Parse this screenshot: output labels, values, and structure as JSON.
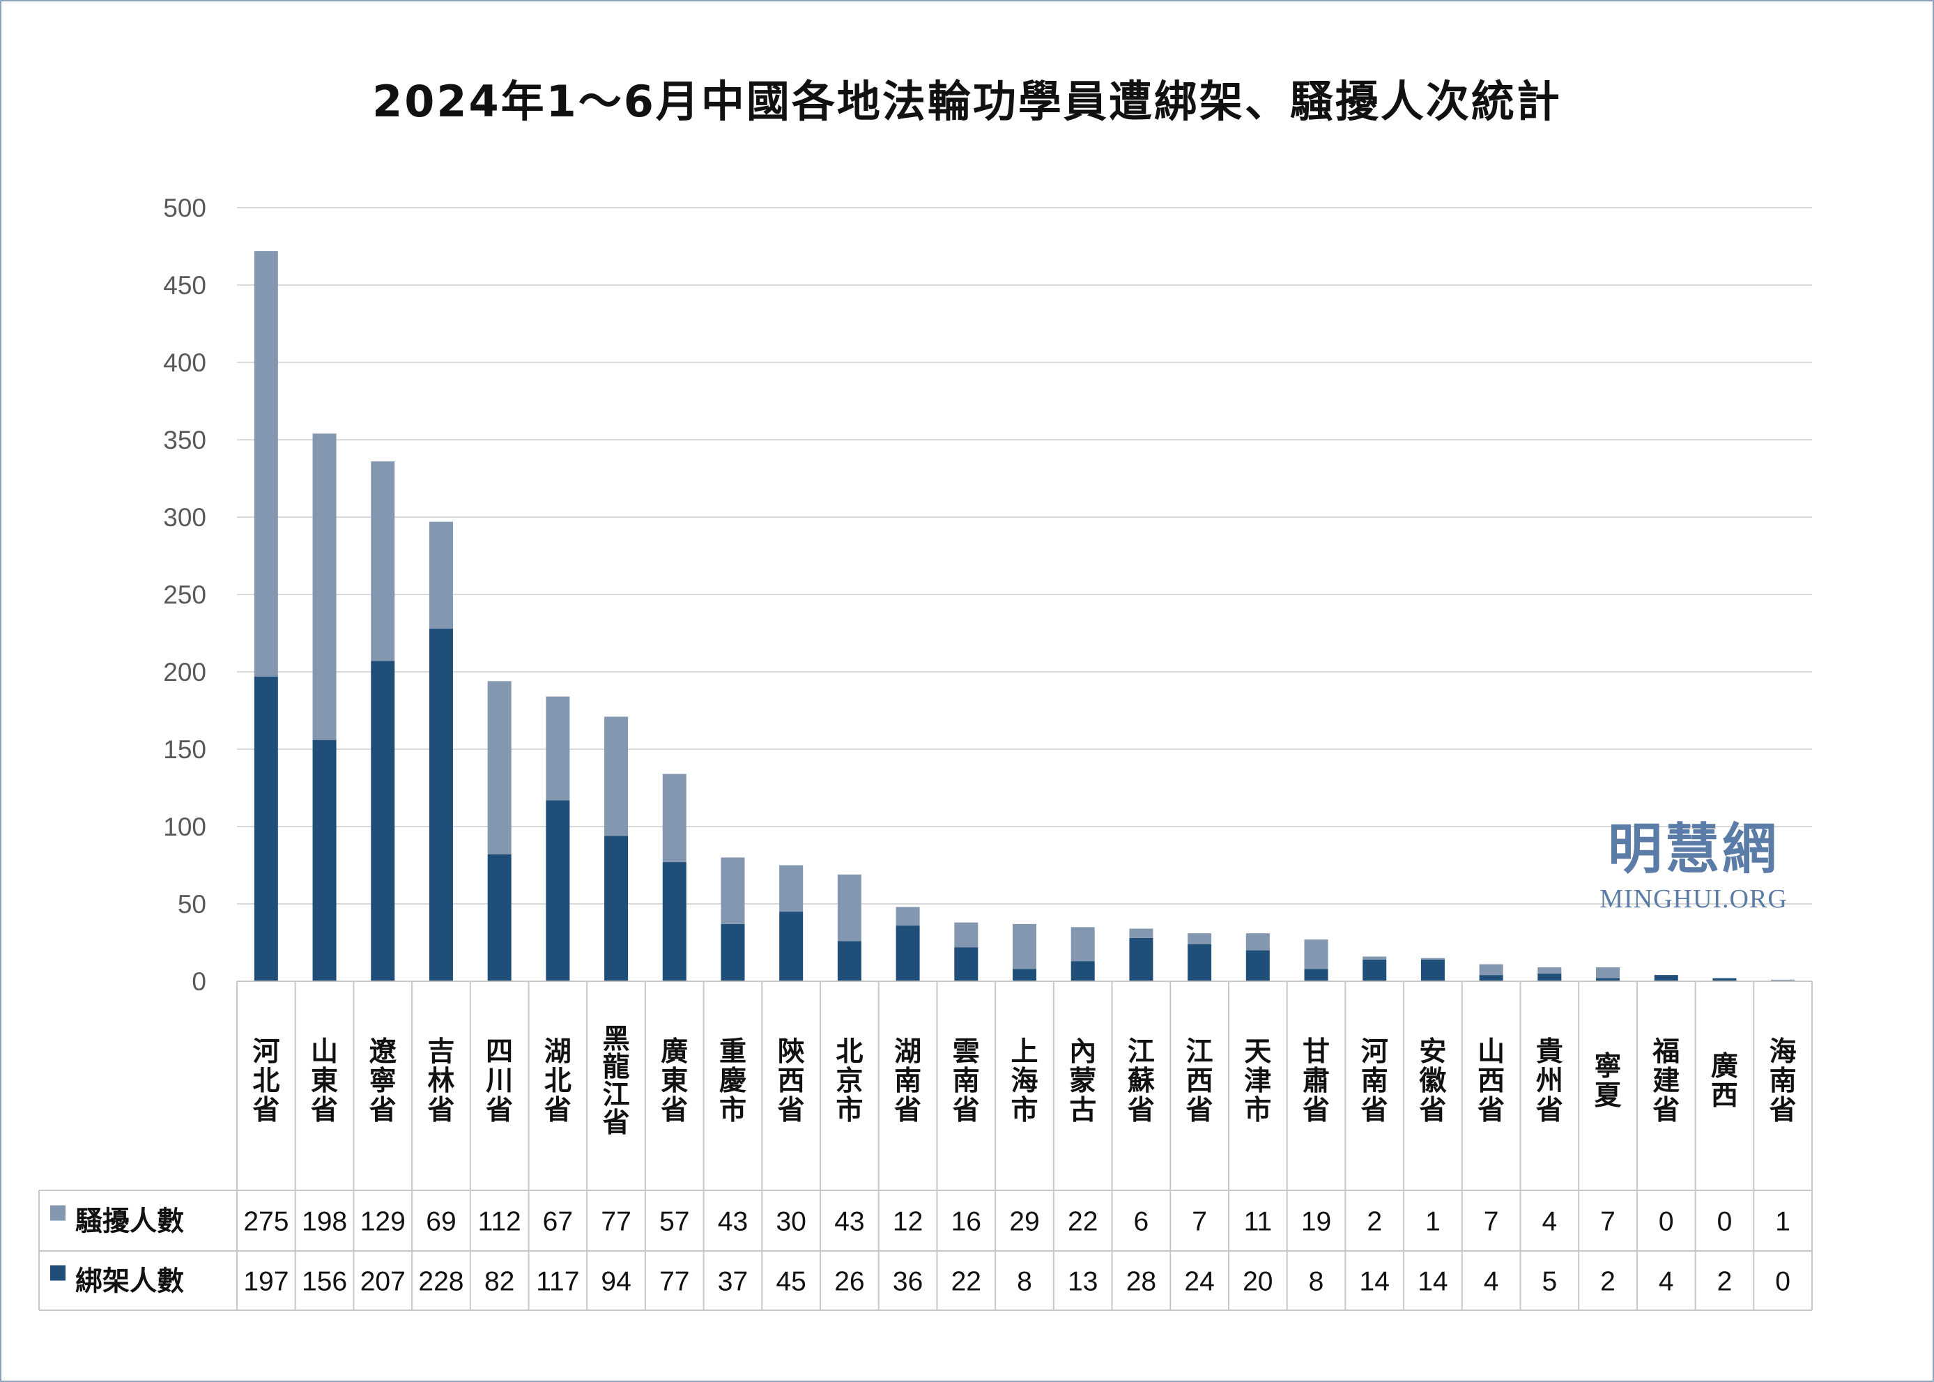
{
  "colors": {
    "harass": "#8497b0",
    "abduct": "#1f4e79",
    "grid": "#d9d9d9",
    "logo": "#5b7ca6"
  },
  "watermark": {
    "chinese": "明慧網",
    "english": "MINGHUI.ORG"
  },
  "chart_data": {
    "type": "bar",
    "stacked": true,
    "title": "2024年1～6月中國各地法輪功學員遭綁架、騷擾人次統計",
    "xlabel": "",
    "ylabel": "",
    "ylim": [
      0,
      500
    ],
    "yticks": [
      0,
      50,
      100,
      150,
      200,
      250,
      300,
      350,
      400,
      450,
      500
    ],
    "grid": true,
    "legend": "table-left",
    "categories": [
      "河北省",
      "山東省",
      "遼寧省",
      "吉林省",
      "四川省",
      "湖北省",
      "黑龍江省",
      "廣東省",
      "重慶市",
      "陝西省",
      "北京市",
      "湖南省",
      "雲南省",
      "上海市",
      "內蒙古",
      "江蘇省",
      "江西省",
      "天津市",
      "甘肅省",
      "河南省",
      "安徽省",
      "山西省",
      "貴州省",
      "寧夏",
      "福建省",
      "廣西",
      "海南省"
    ],
    "series": [
      {
        "name": "騷擾人數",
        "color": "#8497b0",
        "values": [
          275,
          198,
          129,
          69,
          112,
          67,
          77,
          57,
          43,
          30,
          43,
          12,
          16,
          29,
          22,
          6,
          7,
          11,
          19,
          2,
          1,
          7,
          4,
          7,
          0,
          0,
          1
        ]
      },
      {
        "name": "綁架人數",
        "color": "#1f4e79",
        "values": [
          197,
          156,
          207,
          228,
          82,
          117,
          94,
          77,
          37,
          45,
          26,
          36,
          22,
          8,
          13,
          28,
          24,
          20,
          8,
          14,
          14,
          4,
          5,
          2,
          4,
          2,
          0
        ]
      }
    ]
  }
}
